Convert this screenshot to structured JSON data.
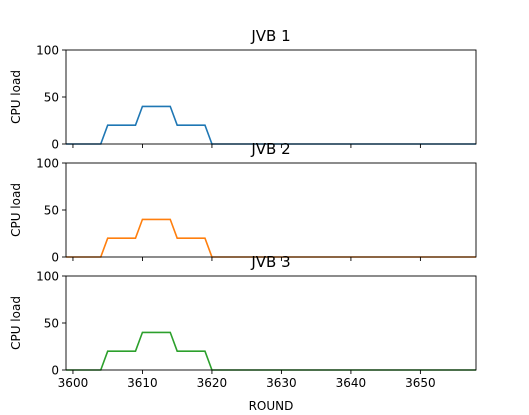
{
  "chart_data": [
    {
      "type": "line",
      "title": "JVB 1",
      "xlabel": "",
      "ylabel": "CPU load",
      "ylim": [
        0,
        100
      ],
      "yticks": [
        "0",
        "50",
        "100"
      ],
      "xlim": [
        3599,
        3658
      ],
      "xticks": [
        "3600",
        "3610",
        "3620",
        "3630",
        "3640",
        "3650"
      ],
      "show_xtick_labels": false,
      "grid": false,
      "color": "#1f77b4",
      "x": [
        3599,
        3604,
        3605,
        3609,
        3610,
        3614,
        3615,
        3619,
        3620,
        3658
      ],
      "y": [
        0,
        0,
        20,
        20,
        40,
        40,
        20,
        20,
        0,
        0
      ]
    },
    {
      "type": "line",
      "title": "JVB 2",
      "xlabel": "",
      "ylabel": "CPU load",
      "ylim": [
        0,
        100
      ],
      "yticks": [
        "0",
        "50",
        "100"
      ],
      "xlim": [
        3599,
        3658
      ],
      "xticks": [
        "3600",
        "3610",
        "3620",
        "3630",
        "3640",
        "3650"
      ],
      "show_xtick_labels": false,
      "grid": false,
      "color": "#ff7f0e",
      "x": [
        3599,
        3604,
        3605,
        3609,
        3610,
        3614,
        3615,
        3619,
        3620,
        3658
      ],
      "y": [
        0,
        0,
        20,
        20,
        40,
        40,
        20,
        20,
        0,
        0
      ]
    },
    {
      "type": "line",
      "title": "JVB 3",
      "xlabel": "ROUND",
      "ylabel": "CPU load",
      "ylim": [
        0,
        100
      ],
      "yticks": [
        "0",
        "50",
        "100"
      ],
      "xlim": [
        3599,
        3658
      ],
      "xticks": [
        "3600",
        "3610",
        "3620",
        "3630",
        "3640",
        "3650"
      ],
      "show_xtick_labels": true,
      "grid": false,
      "color": "#2ca02c",
      "x": [
        3599,
        3604,
        3605,
        3609,
        3610,
        3614,
        3615,
        3619,
        3620,
        3658
      ],
      "y": [
        0,
        0,
        20,
        20,
        40,
        40,
        20,
        20,
        0,
        0
      ]
    }
  ]
}
